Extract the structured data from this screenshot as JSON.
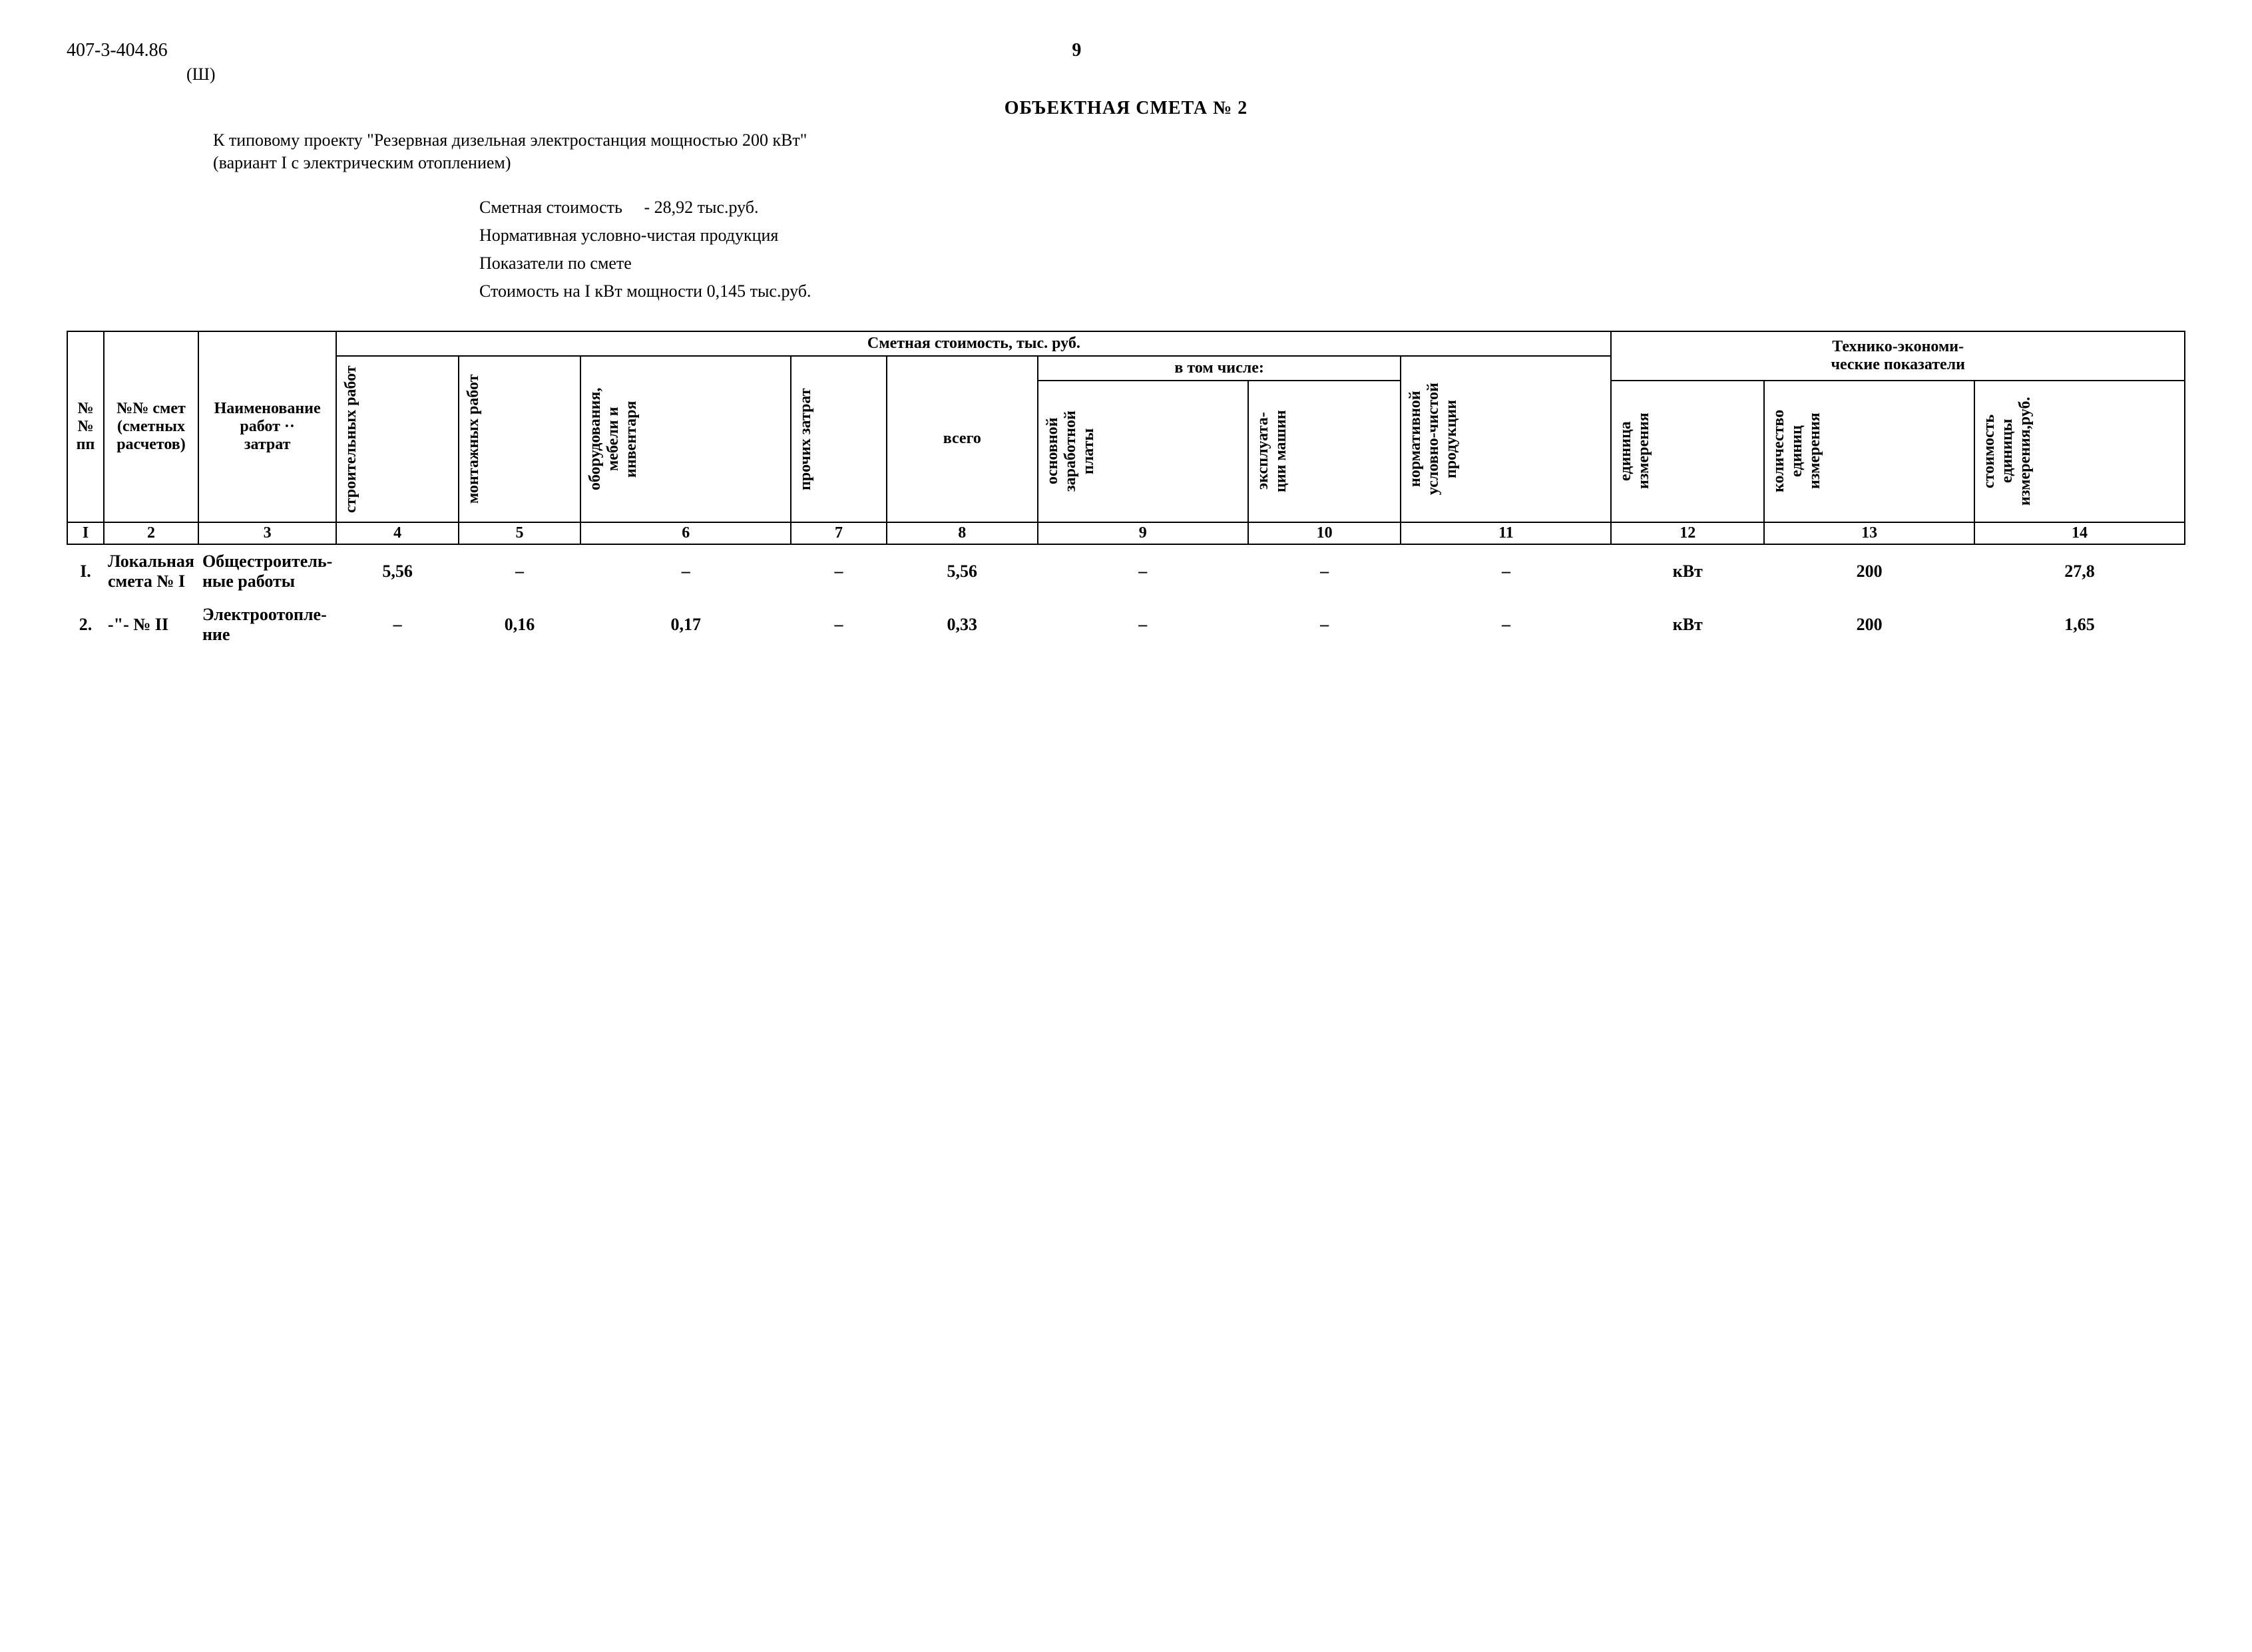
{
  "doc_number": "407-3-404.86",
  "doc_marker": "(Ш)",
  "page_number": "9",
  "title": "ОБЪЕКТНАЯ СМЕТА № 2",
  "subtitle_line1": "К типовому проекту \"Резервная дизельная электростанция мощностью 200 кВт\"",
  "subtitle_line2": "(вариант I с электрическим отоплением)",
  "summary": {
    "line1_label": "Сметная стоимость",
    "line1_value": "- 28,92 тыс.руб.",
    "line2": "Нормативная условно-чистая продукция",
    "line3": "Показатели по смете",
    "line4_label": "Стоимость на I кВт мощности",
    "line4_value": "0,145 тыс.руб."
  },
  "table": {
    "group_headers": {
      "cost": "Сметная стоимость, тыс. руб.",
      "including": "в том числе:",
      "tech_econ": "Технико-экономи-\nческие показатели"
    },
    "col_headers": {
      "c1": "№№\nпп",
      "c2": "№№ смет\n(сметных\nрасчетов)",
      "c3": "Наименование\nработ ··\nзатрат",
      "c4": "строительных\nработ",
      "c5": "монтажных\nработ",
      "c6": "оборудования,\nмебели и\nинвентаря",
      "c7": "прочих затрат",
      "c8": "всего",
      "c9": "основной\nзаработной\nплаты",
      "c10": "эксплуата-\nции машин",
      "c11": "нормативной\nусловно-чистой\nпродукции",
      "c12": "единица\nизмерения",
      "c13": "количество\nединиц\nизмерения",
      "c14": "стоимость\nединицы\nизмерения,руб."
    },
    "num_row": [
      "I",
      "2",
      "3",
      "4",
      "5",
      "6",
      "7",
      "8",
      "9",
      "10",
      "11",
      "12",
      "13",
      "14"
    ],
    "rows": [
      {
        "n": "I.",
        "smeta": "Локальная\nсмета № I",
        "name": "Общестроитель-\nные работы",
        "c4": "5,56",
        "c5": "–",
        "c6": "–",
        "c7": "–",
        "c8": "5,56",
        "c9": "–",
        "c10": "–",
        "c11": "–",
        "c12": "кВт",
        "c13": "200",
        "c14": "27,8"
      },
      {
        "n": "2.",
        "smeta": "-\"- № II",
        "name": "Электроотопле-\nние",
        "c4": "–",
        "c5": "0,16",
        "c6": "0,17",
        "c7": "–",
        "c8": "0,33",
        "c9": "–",
        "c10": "–",
        "c11": "–",
        "c12": "кВт",
        "c13": "200",
        "c14": "1,65"
      }
    ]
  },
  "colors": {
    "text": "#000000",
    "background": "#ffffff",
    "border": "#000000"
  }
}
